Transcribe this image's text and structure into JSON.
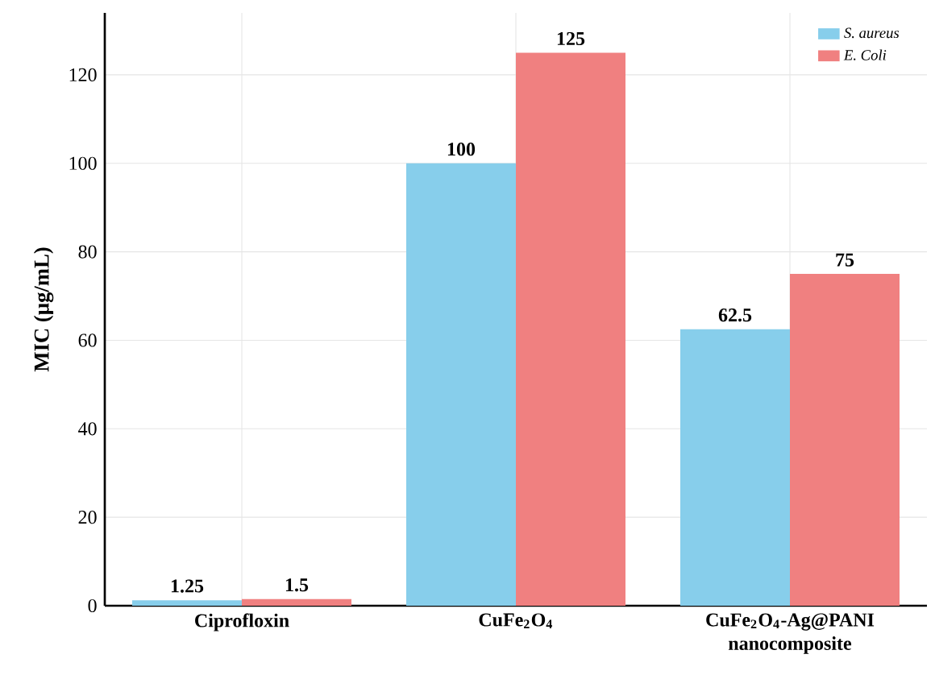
{
  "chart_data": {
    "type": "bar",
    "ylabel": "MIC (µg/mL)",
    "categories": [
      "Ciprofloxin",
      "CuFe$_{2}$O$_{4}$",
      "CuFe$_{2}$O$_{4}$-Ag@PANI nanocomposite"
    ],
    "series": [
      {
        "name": "S. aureus",
        "color": "#87ceeb",
        "values": [
          1.25,
          100,
          62.5
        ]
      },
      {
        "name": "E. Coli",
        "color": "#f08080",
        "values": [
          1.5,
          125,
          75
        ]
      }
    ],
    "ylim": [
      0,
      134
    ],
    "yticks": [
      0,
      20,
      40,
      60,
      80,
      100,
      120
    ],
    "grid": true,
    "legend": "top right",
    "data_labels": true
  }
}
